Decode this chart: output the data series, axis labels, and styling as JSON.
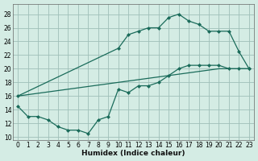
{
  "xlabel": "Humidex (Indice chaleur)",
  "bg_color": "#d4ece4",
  "grid_color": "#9fbfb8",
  "line_color": "#1a6b5a",
  "xlim": [
    -0.5,
    23.5
  ],
  "ylim": [
    9.5,
    29.5
  ],
  "xticks": [
    0,
    1,
    2,
    3,
    4,
    5,
    6,
    7,
    8,
    9,
    10,
    11,
    12,
    13,
    14,
    15,
    16,
    17,
    18,
    19,
    20,
    21,
    22,
    23
  ],
  "yticks": [
    10,
    12,
    14,
    16,
    18,
    20,
    22,
    24,
    26,
    28
  ],
  "line_top_x": [
    0,
    10,
    11,
    12,
    13,
    14,
    15,
    16,
    17,
    18,
    19,
    20,
    21,
    22,
    23
  ],
  "line_top_y": [
    16,
    23,
    25,
    25.5,
    26,
    26,
    27.5,
    28,
    27,
    26.5,
    25.5,
    25.5,
    25.5,
    22.5,
    20
  ],
  "line_diag_x": [
    0,
    1,
    2,
    3,
    4,
    5,
    6,
    7,
    8,
    9,
    10,
    11,
    12,
    13,
    14,
    15,
    16,
    17,
    18,
    19,
    20,
    21,
    22,
    23
  ],
  "line_diag_y": [
    16,
    16.2,
    16.4,
    16.6,
    16.8,
    17,
    17.2,
    17.4,
    17.6,
    17.8,
    18,
    18.2,
    18.4,
    18.6,
    18.8,
    19,
    19.2,
    19.4,
    19.6,
    19.8,
    20,
    20,
    20,
    20
  ],
  "line_bot_x": [
    0,
    1,
    2,
    3,
    4,
    5,
    6,
    7,
    8,
    9,
    10,
    11,
    12,
    13,
    14,
    15,
    16,
    17,
    18,
    19,
    20,
    21,
    22,
    23
  ],
  "line_bot_y": [
    14.5,
    13,
    13,
    12.5,
    11.5,
    11,
    11,
    10.5,
    12.5,
    13,
    17,
    16.5,
    17.5,
    17.5,
    18,
    19,
    20,
    20.5,
    20.5,
    20.5,
    20.5,
    20,
    20,
    20
  ]
}
